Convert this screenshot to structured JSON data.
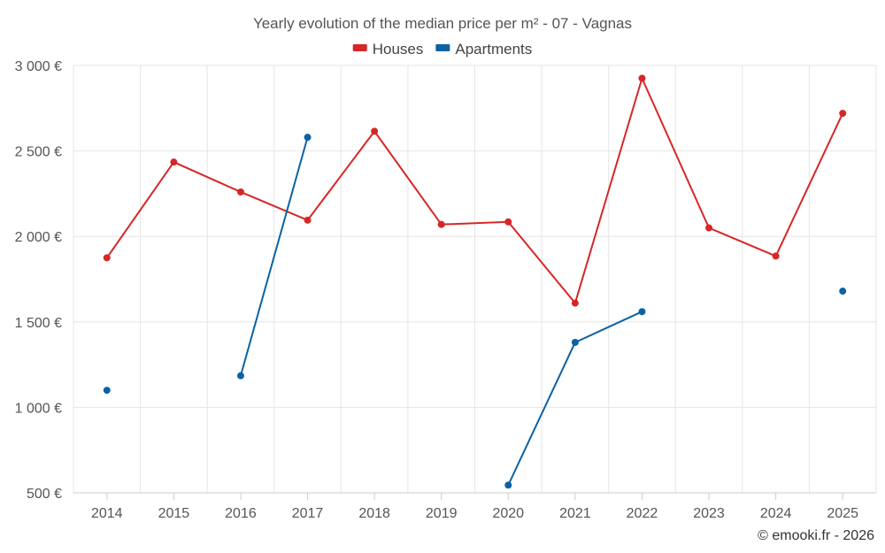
{
  "chart_data": {
    "type": "line",
    "title": "Yearly evolution of the median price per m² - 07 - Vagnas",
    "xlabel": "",
    "ylabel": "",
    "categories": [
      "2014",
      "2015",
      "2016",
      "2017",
      "2018",
      "2019",
      "2020",
      "2021",
      "2022",
      "2023",
      "2024",
      "2025"
    ],
    "ylim": [
      500,
      3000
    ],
    "yticks": [
      500,
      1000,
      1500,
      2000,
      2500,
      3000
    ],
    "ytick_labels": [
      "500 €",
      "1 000 €",
      "1 500 €",
      "2 000 €",
      "2 500 €",
      "3 000 €"
    ],
    "grid": true,
    "legend_position": "top-center",
    "series": [
      {
        "name": "Houses",
        "color": "#d62728",
        "values": [
          1875,
          2435,
          2260,
          2095,
          2615,
          2070,
          2085,
          1610,
          2925,
          2050,
          1885,
          2720
        ]
      },
      {
        "name": "Apartments",
        "color": "#0b62a4",
        "values": [
          1100,
          null,
          1185,
          2580,
          null,
          null,
          545,
          1380,
          1560,
          null,
          null,
          1680
        ]
      }
    ]
  },
  "credit": "© emooki.fr - 2026"
}
